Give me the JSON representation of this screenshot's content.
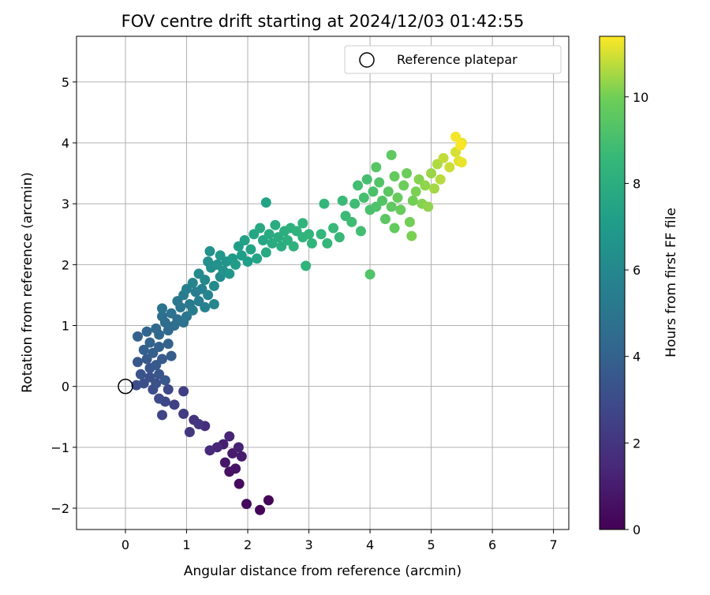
{
  "chart_data": {
    "type": "scatter",
    "title": "FOV centre drift starting at 2024/12/03 01:42:55",
    "xlabel": "Angular distance from reference (arcmin)",
    "ylabel": "Rotation from reference (arcmin)",
    "xlim": [
      -0.8,
      7.25
    ],
    "ylim": [
      -2.35,
      5.75
    ],
    "xticks": [
      0,
      1,
      2,
      3,
      4,
      5,
      6,
      7
    ],
    "yticks": [
      -2,
      -1,
      0,
      1,
      2,
      3,
      4,
      5
    ],
    "grid": true,
    "legend": {
      "placement": "top-right",
      "entries": [
        {
          "label": "Reference platepar",
          "marker": "open-circle"
        }
      ]
    },
    "reference_point": {
      "x": 0,
      "y": 0
    },
    "colorbar": {
      "label": "Hours from first FF file",
      "colormap": "viridis",
      "range": [
        0,
        11.4
      ],
      "ticks": [
        0,
        2,
        4,
        6,
        8,
        10
      ]
    },
    "series": [
      {
        "points": [
          [
            2.2,
            -2.03,
            0.1
          ],
          [
            2.34,
            -1.87,
            0.2
          ],
          [
            1.98,
            -1.93,
            0.3
          ],
          [
            1.86,
            -1.6,
            0.4
          ],
          [
            1.7,
            -1.4,
            0.6
          ],
          [
            1.8,
            -1.35,
            0.7
          ],
          [
            1.63,
            -1.25,
            0.8
          ],
          [
            1.9,
            -1.15,
            0.9
          ],
          [
            1.75,
            -1.1,
            1.0
          ],
          [
            1.6,
            -0.95,
            1.1
          ],
          [
            1.85,
            -1.0,
            1.2
          ],
          [
            1.7,
            -0.82,
            1.3
          ],
          [
            1.5,
            -1.0,
            1.4
          ],
          [
            1.38,
            -1.05,
            1.5
          ],
          [
            1.3,
            -0.65,
            1.7
          ],
          [
            1.12,
            -0.55,
            1.9
          ],
          [
            1.2,
            -0.62,
            2.0
          ],
          [
            1.05,
            -0.75,
            2.1
          ],
          [
            0.95,
            -0.45,
            2.3
          ],
          [
            0.8,
            -0.3,
            2.5
          ],
          [
            0.95,
            -0.08,
            2.4
          ],
          [
            0.6,
            -0.47,
            2.6
          ],
          [
            0.65,
            -0.25,
            2.7
          ],
          [
            0.7,
            -0.05,
            2.8
          ],
          [
            0.55,
            -0.2,
            2.9
          ],
          [
            0.45,
            -0.05,
            3.0
          ],
          [
            0.3,
            0.05,
            3.1
          ],
          [
            0.18,
            0.02,
            3.1
          ],
          [
            0.4,
            0.15,
            3.2
          ],
          [
            0.5,
            0.05,
            3.2
          ],
          [
            0.25,
            0.2,
            3.3
          ],
          [
            0.4,
            0.3,
            3.4
          ],
          [
            0.55,
            0.2,
            3.4
          ],
          [
            0.65,
            0.1,
            3.5
          ],
          [
            0.2,
            0.4,
            3.5
          ],
          [
            0.35,
            0.45,
            3.6
          ],
          [
            0.5,
            0.35,
            3.6
          ],
          [
            0.6,
            0.45,
            3.7
          ],
          [
            0.75,
            0.5,
            3.8
          ],
          [
            0.45,
            0.55,
            3.8
          ],
          [
            0.3,
            0.6,
            3.9
          ],
          [
            0.55,
            0.65,
            3.9
          ],
          [
            0.7,
            0.7,
            4.0
          ],
          [
            0.2,
            0.82,
            4.0
          ],
          [
            0.4,
            0.72,
            4.1
          ],
          [
            0.35,
            0.9,
            4.2
          ],
          [
            0.55,
            0.85,
            4.3
          ],
          [
            0.5,
            0.95,
            4.4
          ],
          [
            0.7,
            0.92,
            4.4
          ],
          [
            0.65,
            1.05,
            4.5
          ],
          [
            0.8,
            1.0,
            4.6
          ],
          [
            0.6,
            1.15,
            4.6
          ],
          [
            0.85,
            1.1,
            4.7
          ],
          [
            0.75,
            1.2,
            4.8
          ],
          [
            0.95,
            1.05,
            4.8
          ],
          [
            0.6,
            1.28,
            4.9
          ],
          [
            0.9,
            1.3,
            5.0
          ],
          [
            1.0,
            1.15,
            5.0
          ],
          [
            0.85,
            1.4,
            5.1
          ],
          [
            1.05,
            1.35,
            5.2
          ],
          [
            0.95,
            1.5,
            5.3
          ],
          [
            1.1,
            1.25,
            5.3
          ],
          [
            1.2,
            1.4,
            5.4
          ],
          [
            1.0,
            1.6,
            5.5
          ],
          [
            1.15,
            1.55,
            5.5
          ],
          [
            1.3,
            1.3,
            5.6
          ],
          [
            1.25,
            1.6,
            5.7
          ],
          [
            1.1,
            1.7,
            5.8
          ],
          [
            1.35,
            1.5,
            5.8
          ],
          [
            1.45,
            1.35,
            5.9
          ],
          [
            1.3,
            1.75,
            6.0
          ],
          [
            1.45,
            1.65,
            6.1
          ],
          [
            1.2,
            1.85,
            6.1
          ],
          [
            1.55,
            1.8,
            6.2
          ],
          [
            1.4,
            1.95,
            6.3
          ],
          [
            1.35,
            2.05,
            6.4
          ],
          [
            1.5,
            2.0,
            6.5
          ],
          [
            1.6,
            1.9,
            6.5
          ],
          [
            1.65,
            2.05,
            6.6
          ],
          [
            1.7,
            1.85,
            6.7
          ],
          [
            1.55,
            2.15,
            6.8
          ],
          [
            1.38,
            2.22,
            6.5
          ],
          [
            1.75,
            2.1,
            6.9
          ],
          [
            1.8,
            2.0,
            7.0
          ],
          [
            1.9,
            2.15,
            7.1
          ],
          [
            1.85,
            2.3,
            7.2
          ],
          [
            2.0,
            2.05,
            7.2
          ],
          [
            1.95,
            2.4,
            7.3
          ],
          [
            2.05,
            2.25,
            7.4
          ],
          [
            2.1,
            2.5,
            7.5
          ],
          [
            2.15,
            2.1,
            7.5
          ],
          [
            2.25,
            2.4,
            7.6
          ],
          [
            2.2,
            2.6,
            7.7
          ],
          [
            2.3,
            2.2,
            7.7
          ],
          [
            2.35,
            2.5,
            7.8
          ],
          [
            2.4,
            2.35,
            7.8
          ],
          [
            2.3,
            3.02,
            7.4
          ],
          [
            2.45,
            2.65,
            7.9
          ],
          [
            2.5,
            2.45,
            7.9
          ],
          [
            2.6,
            2.55,
            8.0
          ],
          [
            2.55,
            2.3,
            8.0
          ],
          [
            2.7,
            2.6,
            8.1
          ],
          [
            2.65,
            2.4,
            8.1
          ],
          [
            2.8,
            2.55,
            8.2
          ],
          [
            2.75,
            2.3,
            8.2
          ],
          [
            2.9,
            2.45,
            8.3
          ],
          [
            2.9,
            2.68,
            8.3
          ],
          [
            3.0,
            2.5,
            8.4
          ],
          [
            2.95,
            1.98,
            8.3
          ],
          [
            3.05,
            2.35,
            8.4
          ],
          [
            3.2,
            2.5,
            8.5
          ],
          [
            3.3,
            2.35,
            8.5
          ],
          [
            3.25,
            3.0,
            8.5
          ],
          [
            3.4,
            2.6,
            8.6
          ],
          [
            3.5,
            2.45,
            8.6
          ],
          [
            3.6,
            2.8,
            8.7
          ],
          [
            3.55,
            3.05,
            8.7
          ],
          [
            3.7,
            2.7,
            8.8
          ],
          [
            3.75,
            3.0,
            8.8
          ],
          [
            3.8,
            3.3,
            8.9
          ],
          [
            3.85,
            2.55,
            8.9
          ],
          [
            3.9,
            3.1,
            9.0
          ],
          [
            3.95,
            3.4,
            9.0
          ],
          [
            4.0,
            2.9,
            9.1
          ],
          [
            4.05,
            3.2,
            9.1
          ],
          [
            4.0,
            1.84,
            9.3
          ],
          [
            4.1,
            2.95,
            9.2
          ],
          [
            4.15,
            3.35,
            9.3
          ],
          [
            4.2,
            3.05,
            9.3
          ],
          [
            4.1,
            3.6,
            9.4
          ],
          [
            4.25,
            2.75,
            9.5
          ],
          [
            4.3,
            3.2,
            9.5
          ],
          [
            4.35,
            2.95,
            9.6
          ],
          [
            4.35,
            3.8,
            9.6
          ],
          [
            4.4,
            3.45,
            9.7
          ],
          [
            4.4,
            2.6,
            9.7
          ],
          [
            4.45,
            3.1,
            9.8
          ],
          [
            4.5,
            2.9,
            9.8
          ],
          [
            4.55,
            3.3,
            9.9
          ],
          [
            4.6,
            3.5,
            9.9
          ],
          [
            4.65,
            2.7,
            10.0
          ],
          [
            4.7,
            3.05,
            10.0
          ],
          [
            4.75,
            3.2,
            10.1
          ],
          [
            4.68,
            2.47,
            10.1
          ],
          [
            4.8,
            3.4,
            10.2
          ],
          [
            4.85,
            3.0,
            10.2
          ],
          [
            4.9,
            3.3,
            10.3
          ],
          [
            4.95,
            2.95,
            10.3
          ],
          [
            5.0,
            3.5,
            10.4
          ],
          [
            5.05,
            3.25,
            10.5
          ],
          [
            5.1,
            3.65,
            10.6
          ],
          [
            5.15,
            3.4,
            10.7
          ],
          [
            5.2,
            3.75,
            10.8
          ],
          [
            5.3,
            3.6,
            10.9
          ],
          [
            5.4,
            3.85,
            11.0
          ],
          [
            5.45,
            3.7,
            11.1
          ],
          [
            5.5,
            4.0,
            11.2
          ],
          [
            5.4,
            4.1,
            11.3
          ],
          [
            5.5,
            3.68,
            11.2
          ],
          [
            5.48,
            3.96,
            11.35
          ]
        ]
      }
    ]
  }
}
